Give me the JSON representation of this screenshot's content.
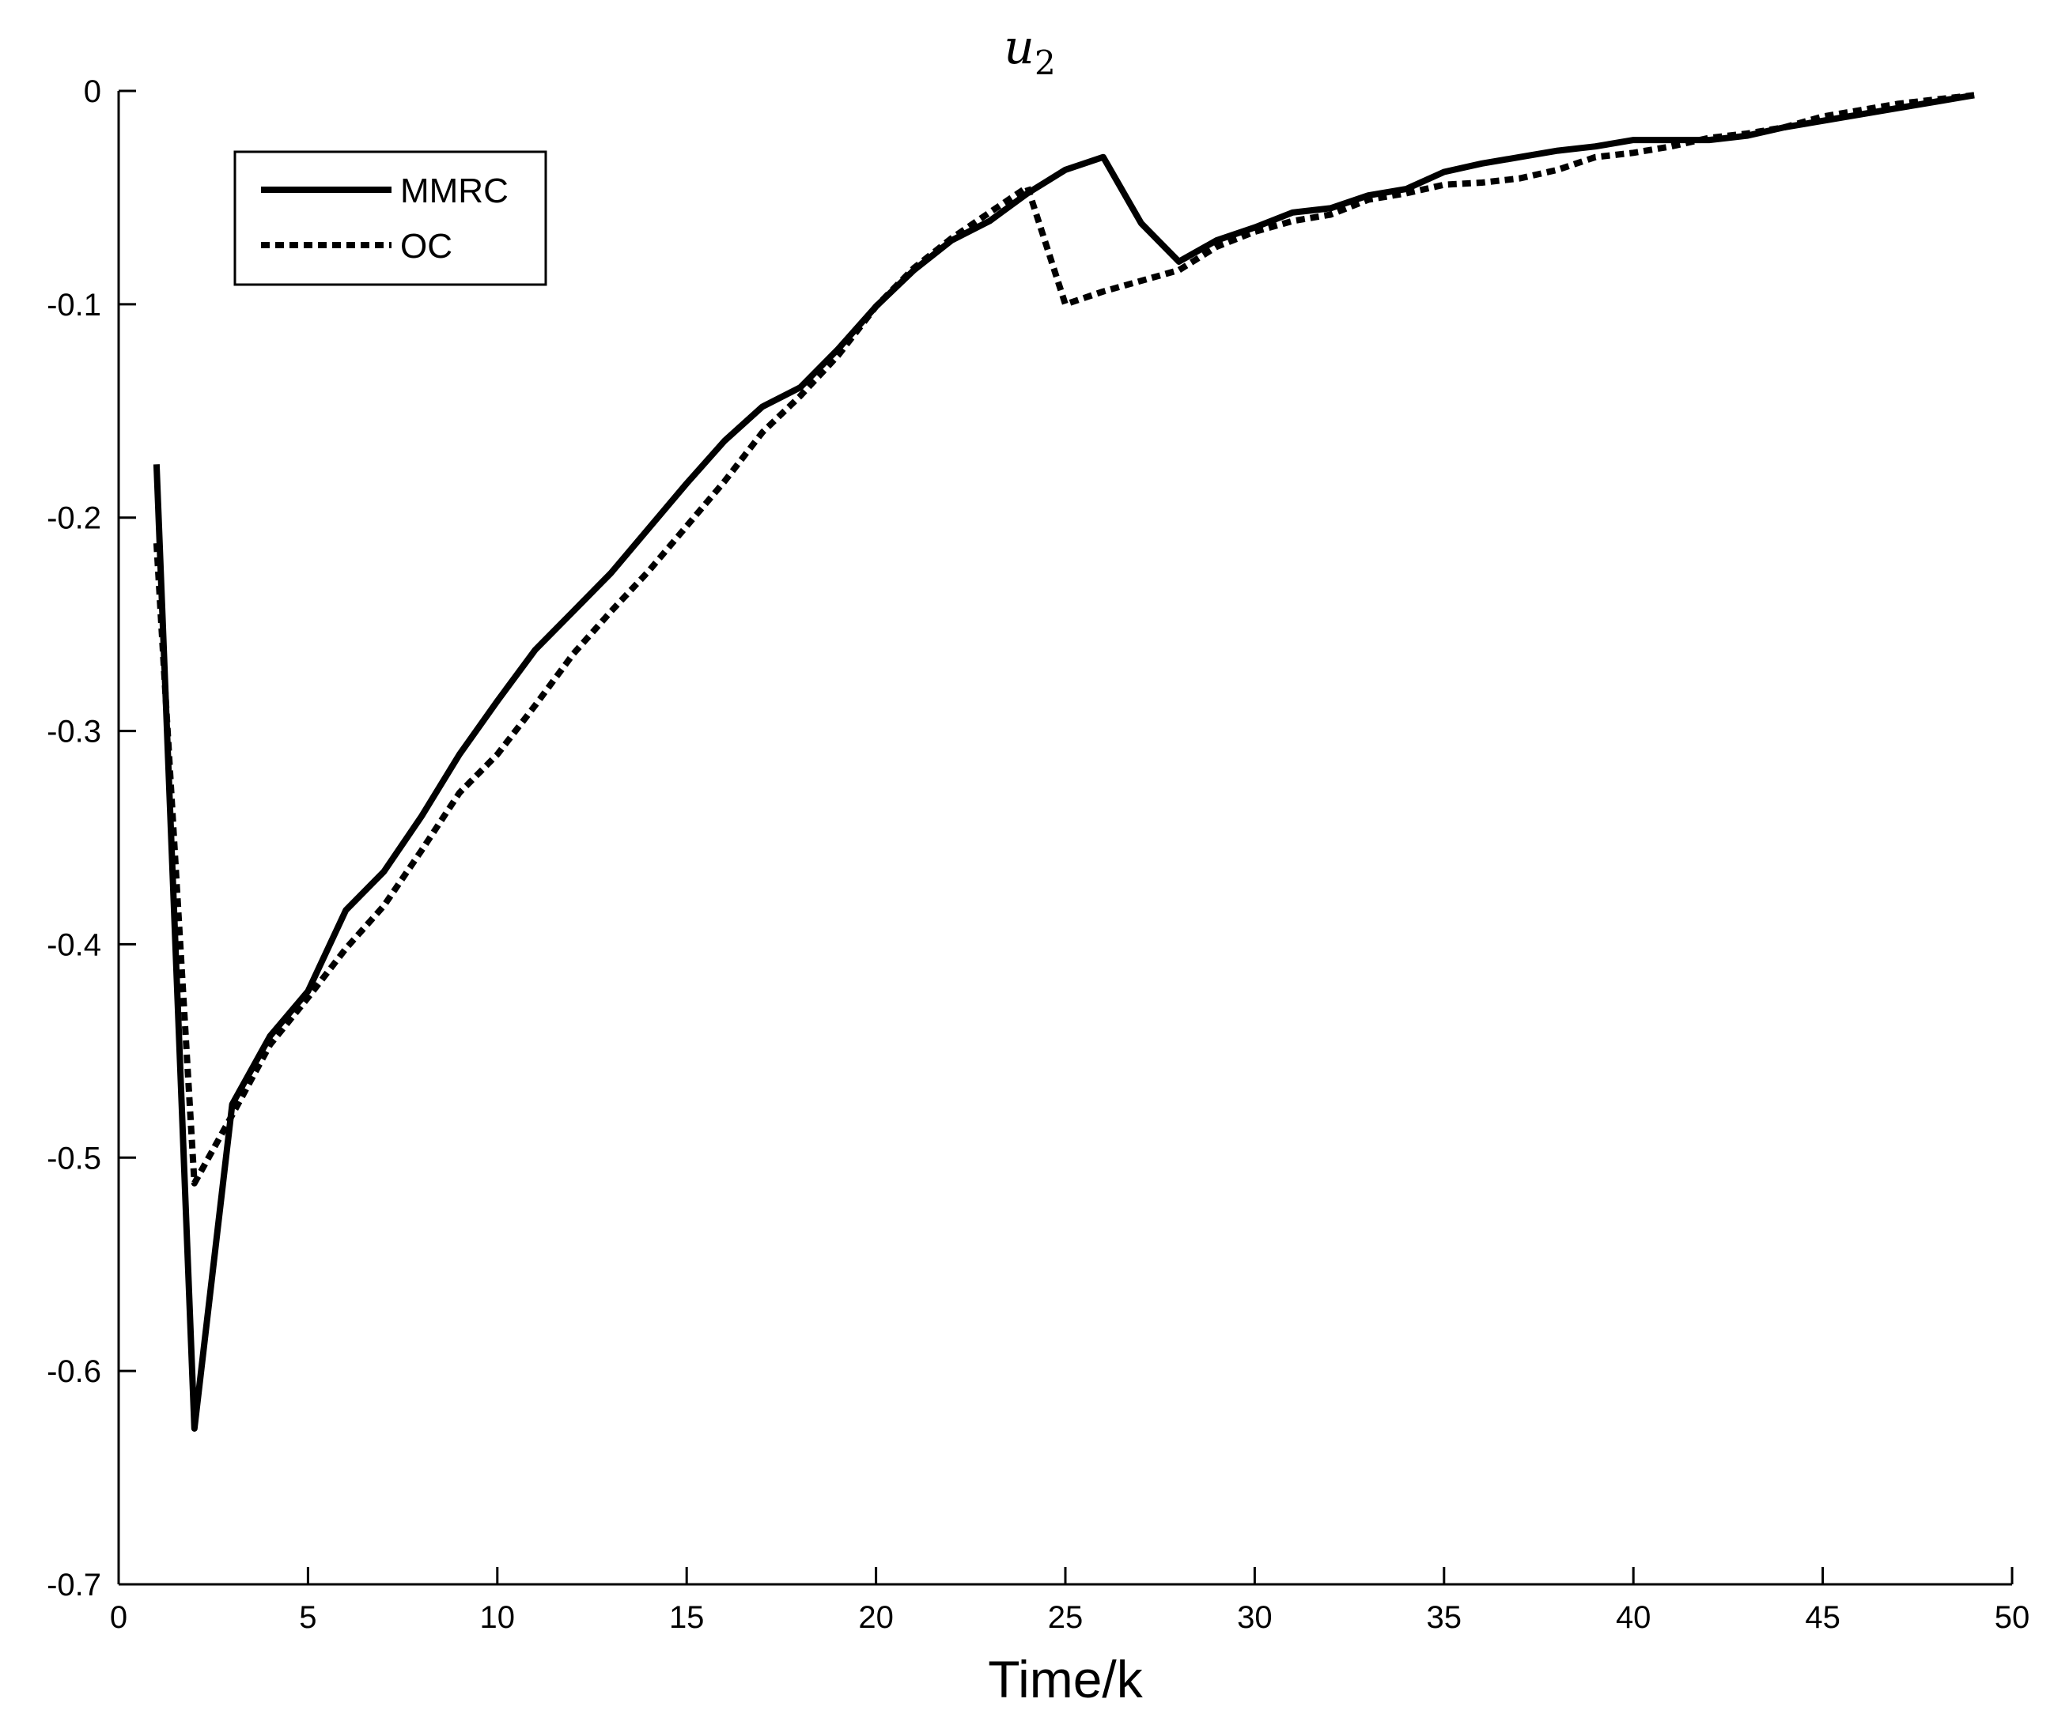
{
  "chart_data": {
    "type": "line",
    "title": "u",
    "title_subscript": "2",
    "xlabel": "Time/k",
    "ylabel": "",
    "xlim": [
      0,
      50
    ],
    "ylim": [
      -0.7,
      0
    ],
    "xticks": [
      0,
      5,
      10,
      15,
      20,
      25,
      30,
      35,
      40,
      45,
      50
    ],
    "yticks": [
      0,
      -0.1,
      -0.2,
      -0.3,
      -0.4,
      -0.5,
      -0.6,
      -0.7
    ],
    "ytick_labels": [
      "0",
      "-0.1",
      "-0.2",
      "-0.3",
      "-0.4",
      "-0.5",
      "-0.6",
      "-0.7"
    ],
    "grid": false,
    "legend_position": "top-left",
    "x": [
      1,
      2,
      3,
      4,
      5,
      6,
      7,
      8,
      9,
      10,
      11,
      12,
      13,
      14,
      15,
      16,
      17,
      18,
      19,
      20,
      21,
      22,
      23,
      24,
      25,
      26,
      27,
      28,
      29,
      30,
      31,
      32,
      33,
      34,
      35,
      36,
      37,
      38,
      39,
      40,
      41,
      42,
      43,
      44,
      45,
      46,
      47,
      48,
      49
    ],
    "series": [
      {
        "name": "MMRC",
        "style": "solid",
        "color": "#000000",
        "values": [
          -0.175,
          -0.627,
          -0.475,
          -0.443,
          -0.422,
          -0.384,
          -0.366,
          -0.34,
          -0.311,
          -0.286,
          -0.262,
          -0.244,
          -0.226,
          -0.205,
          -0.184,
          -0.164,
          -0.148,
          -0.139,
          -0.121,
          -0.101,
          -0.084,
          -0.07,
          -0.061,
          -0.048,
          -0.037,
          -0.031,
          -0.062,
          -0.08,
          -0.07,
          -0.064,
          -0.057,
          -0.055,
          -0.049,
          -0.046,
          -0.038,
          -0.034,
          -0.031,
          -0.028,
          -0.026,
          -0.023,
          -0.023,
          -0.023,
          -0.021,
          -0.017,
          -0.014,
          -0.011,
          -0.008,
          -0.005,
          -0.002
        ]
      },
      {
        "name": "OC",
        "style": "dotted",
        "color": "#000000",
        "values": [
          -0.212,
          -0.512,
          -0.48,
          -0.447,
          -0.425,
          -0.402,
          -0.382,
          -0.356,
          -0.329,
          -0.311,
          -0.288,
          -0.264,
          -0.244,
          -0.225,
          -0.204,
          -0.183,
          -0.16,
          -0.143,
          -0.124,
          -0.101,
          -0.083,
          -0.069,
          -0.057,
          -0.045,
          -0.1,
          -0.094,
          -0.089,
          -0.084,
          -0.073,
          -0.066,
          -0.061,
          -0.058,
          -0.051,
          -0.048,
          -0.044,
          -0.043,
          -0.041,
          -0.037,
          -0.031,
          -0.029,
          -0.026,
          -0.022,
          -0.02,
          -0.017,
          -0.012,
          -0.009,
          -0.006,
          -0.004,
          -0.002
        ]
      }
    ]
  }
}
